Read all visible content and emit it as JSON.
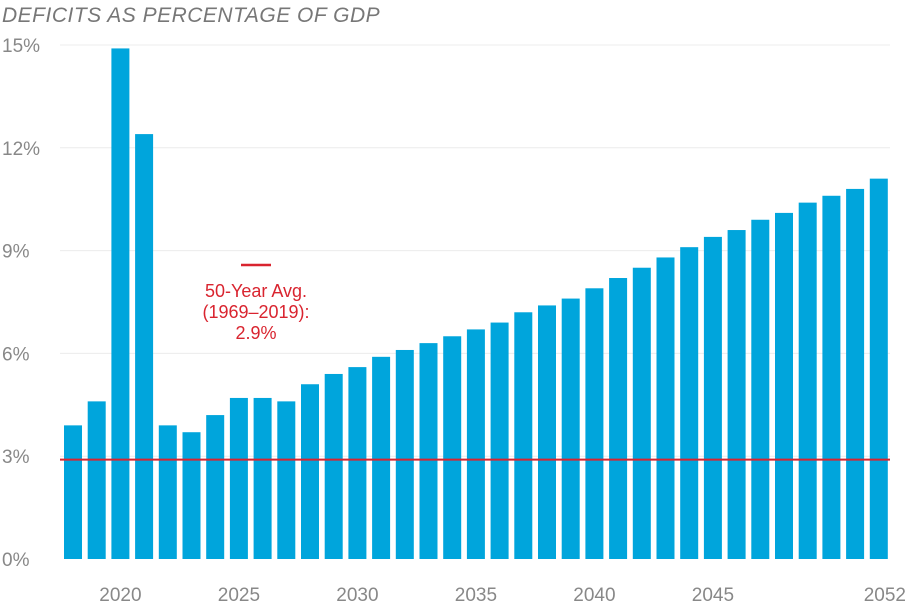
{
  "chart_data": {
    "type": "bar",
    "title": "DEFICITS AS PERCENTAGE OF GDP",
    "xlabel": "",
    "ylabel": "",
    "ylim": [
      0,
      15
    ],
    "grid": true,
    "y_ticks": [
      "0%",
      "3%",
      "6%",
      "9%",
      "12%",
      "15%"
    ],
    "y_tick_values": [
      0,
      3,
      6,
      9,
      12,
      15
    ],
    "x_tick_labels": [
      "2020",
      "2025",
      "2030",
      "2035",
      "2040",
      "2045",
      "2052"
    ],
    "x_tick_years": [
      2020,
      2025,
      2030,
      2035,
      2040,
      2045,
      2052
    ],
    "categories": [
      2018,
      2019,
      2020,
      2021,
      2022,
      2023,
      2024,
      2025,
      2026,
      2027,
      2028,
      2029,
      2030,
      2031,
      2032,
      2033,
      2034,
      2035,
      2036,
      2037,
      2038,
      2039,
      2040,
      2041,
      2042,
      2043,
      2044,
      2045,
      2046,
      2047,
      2048,
      2049,
      2050,
      2051,
      2052
    ],
    "values": [
      3.9,
      4.6,
      14.9,
      12.4,
      3.9,
      3.7,
      4.2,
      4.7,
      4.7,
      4.6,
      5.1,
      5.4,
      5.6,
      5.9,
      6.1,
      6.3,
      6.5,
      6.7,
      6.9,
      7.2,
      7.4,
      7.6,
      7.9,
      8.2,
      8.5,
      8.8,
      9.1,
      9.4,
      9.6,
      9.9,
      10.1,
      10.4,
      10.6,
      10.8,
      11.1
    ],
    "bar_color": "#00a5dc",
    "reference_line": {
      "value": 2.9,
      "color": "#d9242f",
      "label_lines": [
        "50-Year Avg.",
        "(1969–2019):",
        "2.9%"
      ]
    }
  }
}
